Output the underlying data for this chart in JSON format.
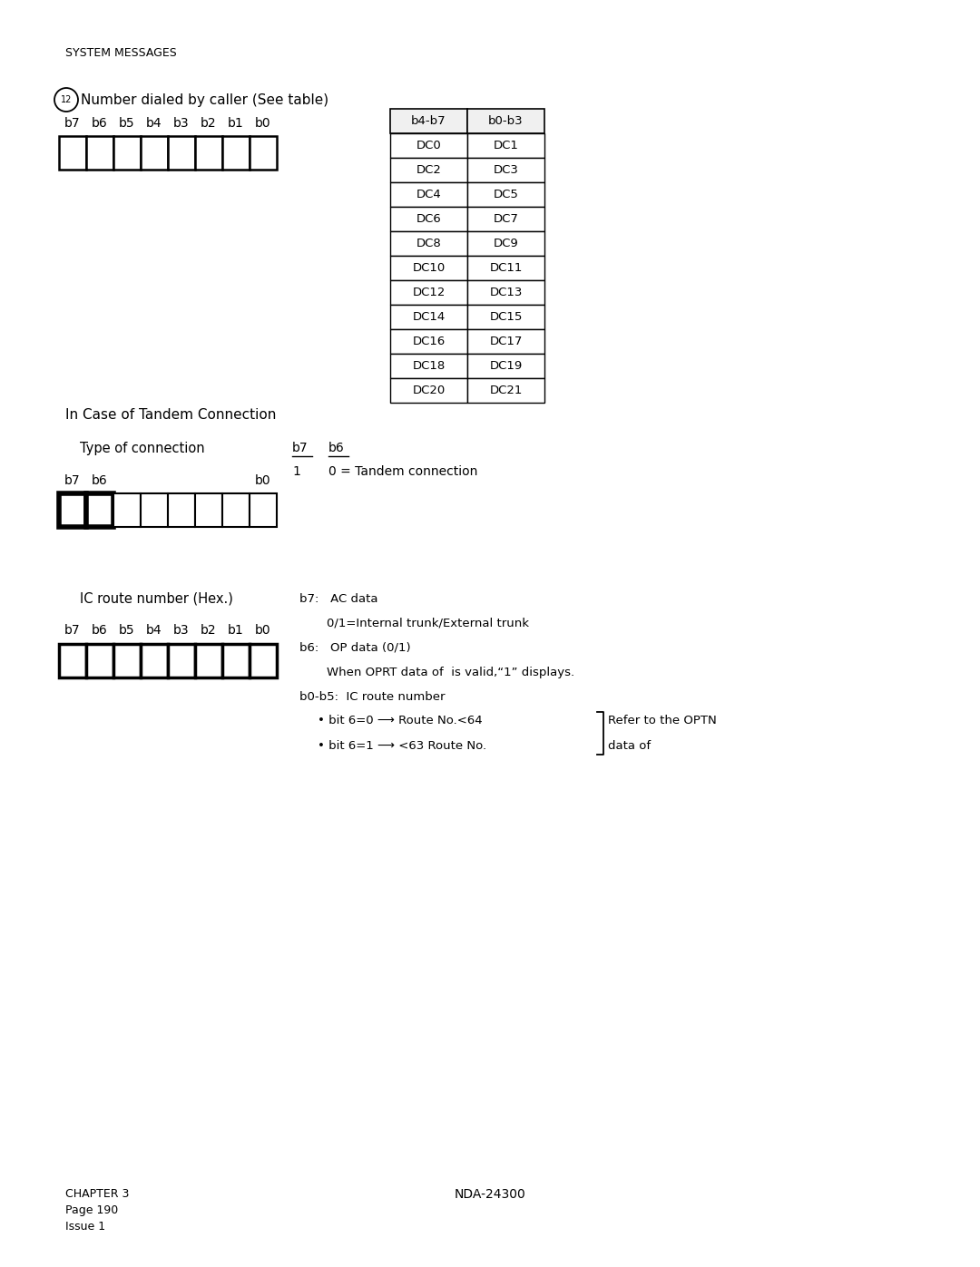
{
  "page_title": "SYSTEM MESSAGES",
  "section1_circle_num": "12",
  "section1_text": "Number dialed by caller (See table)",
  "bit_labels_1": [
    "b7",
    "b6",
    "b5",
    "b4",
    "b3",
    "b2",
    "b1",
    "b0"
  ],
  "table_header": [
    "b4-b7",
    "b0-b3"
  ],
  "table_rows": [
    [
      "DC0",
      "DC1"
    ],
    [
      "DC2",
      "DC3"
    ],
    [
      "DC4",
      "DC5"
    ],
    [
      "DC6",
      "DC7"
    ],
    [
      "DC8",
      "DC9"
    ],
    [
      "DC10",
      "DC11"
    ],
    [
      "DC12",
      "DC13"
    ],
    [
      "DC14",
      "DC15"
    ],
    [
      "DC16",
      "DC17"
    ],
    [
      "DC18",
      "DC19"
    ],
    [
      "DC20",
      "DC21"
    ]
  ],
  "section2_title": "In Case of Tandem Connection",
  "section2_label": "Type of connection",
  "section2_b7_label": "b7",
  "section2_b6_label": "b6",
  "section2_desc_num": "1",
  "section2_desc_text": "0 = Tandem connection",
  "section3_label": "IC route number (Hex.)",
  "bit_labels_3": [
    "b7",
    "b6",
    "b5",
    "b4",
    "b3",
    "b2",
    "b1",
    "b0"
  ],
  "section3_lines": [
    "b7:   AC data",
    "0/1=Internal trunk/External trunk",
    "b6:   OP data (0/1)",
    "When OPRT data of  is valid,“1” displays.",
    "b0-b5:  IC route number",
    "• bit 6=0 ⟶ Route No.<64",
    "• bit 6=1 ⟶ <63 Route No."
  ],
  "section3_refer1": "Refer to the OPTN",
  "section3_refer2": "data of",
  "footer_left1": "CHAPTER 3",
  "footer_left2": "Page 190",
  "footer_left3": "Issue 1",
  "footer_center": "NDA-24300",
  "bg_color": "#ffffff",
  "text_color": "#000000",
  "line_color": "#000000"
}
